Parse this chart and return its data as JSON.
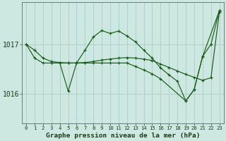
{
  "background_color": "#cce8e0",
  "grid_color": "#aacccc",
  "line_color": "#1a5c1a",
  "plot_bg": "#cce8e0",
  "title": "Graphe pression niveau de la mer (hPa)",
  "ylabel_left_ticks": [
    1016,
    1017
  ],
  "xlim": [
    -0.5,
    23.5
  ],
  "ylim": [
    1015.4,
    1017.85
  ],
  "line1_x": [
    0,
    1,
    2,
    3,
    4,
    5,
    6,
    7,
    8,
    9,
    10,
    11,
    12,
    13,
    14,
    15,
    16,
    17,
    18,
    19,
    20,
    21,
    22,
    23
  ],
  "line1_y": [
    1017.0,
    1016.88,
    1016.72,
    1016.65,
    1016.63,
    1016.62,
    1016.62,
    1016.63,
    1016.65,
    1016.68,
    1016.7,
    1016.72,
    1016.73,
    1016.72,
    1016.7,
    1016.67,
    1016.6,
    1016.53,
    1016.46,
    1016.39,
    1016.33,
    1016.27,
    1016.32,
    1017.65
  ],
  "line2_x": [
    0,
    1,
    2,
    3,
    4,
    5,
    6,
    7,
    8,
    9,
    10,
    11,
    12,
    13,
    14,
    15,
    16,
    17,
    18,
    19,
    20,
    21,
    22,
    23
  ],
  "line2_y": [
    1017.0,
    1016.72,
    1016.62,
    1016.62,
    1016.62,
    1016.05,
    1016.62,
    1016.88,
    1017.15,
    1017.28,
    1017.22,
    1017.27,
    1017.17,
    1017.05,
    1016.88,
    1016.72,
    1016.52,
    1016.38,
    1016.25,
    1015.85,
    1016.08,
    1016.75,
    1017.0,
    1017.68
  ],
  "line3_x": [
    3,
    5,
    6,
    7,
    8,
    9,
    10,
    11,
    12,
    13,
    14,
    15,
    16,
    19,
    20,
    21,
    23
  ],
  "line3_y": [
    1016.62,
    1016.62,
    1016.62,
    1016.62,
    1016.62,
    1016.62,
    1016.62,
    1016.62,
    1016.62,
    1016.55,
    1016.48,
    1016.4,
    1016.3,
    1015.85,
    1016.08,
    1016.75,
    1017.68
  ]
}
